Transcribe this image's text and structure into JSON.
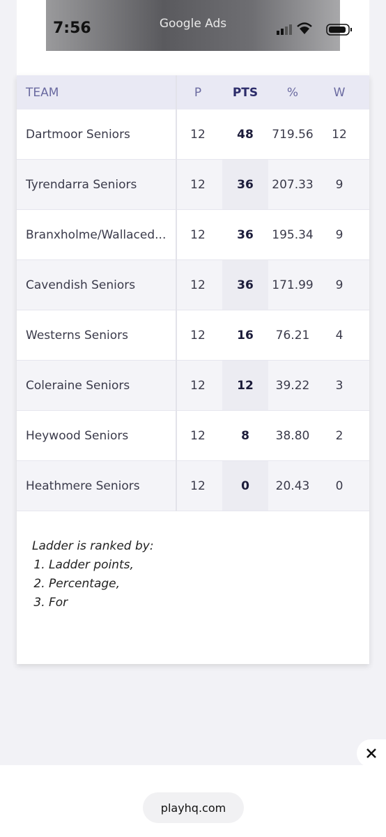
{
  "status_bar": {
    "time": "7:56",
    "banner": "Google Ads"
  },
  "table": {
    "headers": [
      "TEAM",
      "P",
      "PTS",
      "%",
      "W"
    ],
    "rows": [
      [
        "Dartmoor Seniors",
        "12",
        "48",
        "719.56",
        "12"
      ],
      [
        "Tyrendarra Seniors",
        "12",
        "36",
        "207.33",
        "9"
      ],
      [
        "Branxholme/Wallaced...",
        "12",
        "36",
        "195.34",
        "9"
      ],
      [
        "Cavendish Seniors",
        "12",
        "36",
        "171.99",
        "9"
      ],
      [
        "Westerns Seniors",
        "12",
        "16",
        "76.21",
        "4"
      ],
      [
        "Coleraine Seniors",
        "12",
        "12",
        "39.22",
        "3"
      ],
      [
        "Heywood Seniors",
        "12",
        "8",
        "38.80",
        "2"
      ],
      [
        "Heathmere Seniors",
        "12",
        "0",
        "20.43",
        "0"
      ]
    ]
  },
  "note": {
    "title": "Ladder is ranked by:",
    "items": [
      "Ladder points,",
      "Percentage,",
      "For"
    ]
  },
  "footer": {
    "url": "playhq.com"
  }
}
